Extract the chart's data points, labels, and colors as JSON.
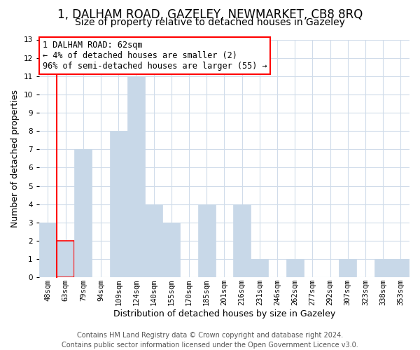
{
  "title": "1, DALHAM ROAD, GAZELEY, NEWMARKET, CB8 8RQ",
  "subtitle": "Size of property relative to detached houses in Gazeley",
  "xlabel": "Distribution of detached houses by size in Gazeley",
  "ylabel": "Number of detached properties",
  "categories": [
    "48sqm",
    "63sqm",
    "79sqm",
    "94sqm",
    "109sqm",
    "124sqm",
    "140sqm",
    "155sqm",
    "170sqm",
    "185sqm",
    "201sqm",
    "216sqm",
    "231sqm",
    "246sqm",
    "262sqm",
    "277sqm",
    "292sqm",
    "307sqm",
    "323sqm",
    "338sqm",
    "353sqm"
  ],
  "values": [
    3,
    2,
    7,
    0,
    8,
    11,
    4,
    3,
    0,
    4,
    0,
    4,
    1,
    0,
    1,
    0,
    0,
    1,
    0,
    1,
    1
  ],
  "bar_color": "#c8d8e8",
  "highlight_bar_index": 1,
  "highlight_color": "#ff0000",
  "ylim": [
    0,
    13
  ],
  "yticks": [
    0,
    1,
    2,
    3,
    4,
    5,
    6,
    7,
    8,
    9,
    10,
    11,
    12,
    13
  ],
  "annotation_line1": "1 DALHAM ROAD: 62sqm",
  "annotation_line2": "← 4% of detached houses are smaller (2)",
  "annotation_line3": "96% of semi-detached houses are larger (55) →",
  "footer_line1": "Contains HM Land Registry data © Crown copyright and database right 2024.",
  "footer_line2": "Contains public sector information licensed under the Open Government Licence v3.0.",
  "background_color": "#ffffff",
  "grid_color": "#d0dcea",
  "title_fontsize": 12,
  "subtitle_fontsize": 10,
  "axis_label_fontsize": 9,
  "tick_fontsize": 7.5,
  "annotation_fontsize": 8.5,
  "footer_fontsize": 7
}
